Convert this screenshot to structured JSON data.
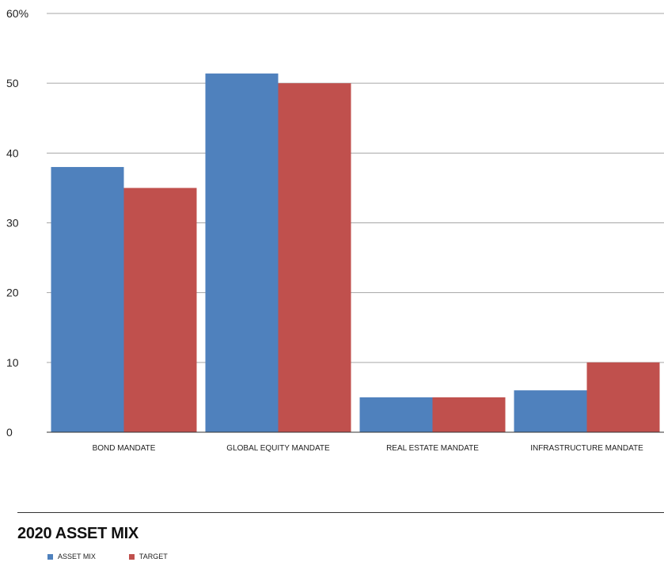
{
  "chart_data": {
    "type": "bar",
    "title": "2020 ASSET MIX",
    "categories": [
      "BOND MANDATE",
      "GLOBAL EQUITY MANDATE",
      "REAL ESTATE MANDATE",
      "INFRASTRUCTURE MANDATE"
    ],
    "series": [
      {
        "name": "ASSET MIX",
        "color": "#4f81bd",
        "values": [
          38,
          51.4,
          5,
          6
        ]
      },
      {
        "name": "TARGET",
        "color": "#c0504d",
        "values": [
          35,
          50,
          5,
          10
        ]
      }
    ],
    "yticks": [
      "0",
      "10",
      "20",
      "30",
      "40",
      "50",
      "60%"
    ],
    "ylim": [
      0,
      60
    ],
    "grid": true,
    "legend_position": "bottom-left"
  }
}
